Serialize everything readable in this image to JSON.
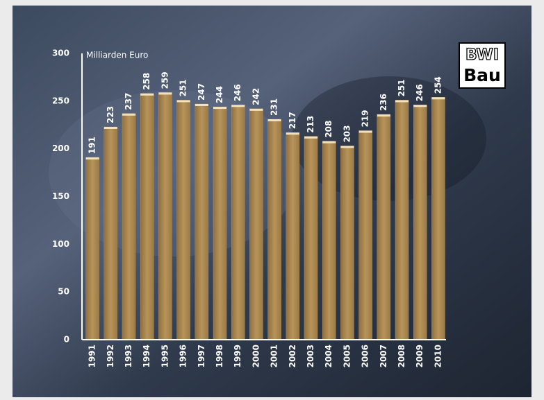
{
  "chart_data": {
    "type": "bar",
    "y_label": "Milliarden Euro",
    "logo": [
      "BWI",
      "Bau"
    ],
    "categories": [
      "1991",
      "1992",
      "1993",
      "1994",
      "1995",
      "1996",
      "1997",
      "1998",
      "1999",
      "2000",
      "2001",
      "2002",
      "2003",
      "2004",
      "2005",
      "2006",
      "2007",
      "2008",
      "2009",
      "2010"
    ],
    "values": [
      191,
      223,
      237,
      258,
      259,
      251,
      247,
      244,
      246,
      242,
      231,
      217,
      213,
      208,
      203,
      219,
      236,
      251,
      246,
      254
    ],
    "color": "#b38f55",
    "ylim": [
      0,
      300
    ],
    "yticks": [
      0,
      50,
      100,
      150,
      200,
      250,
      300
    ],
    "grid": false
  }
}
